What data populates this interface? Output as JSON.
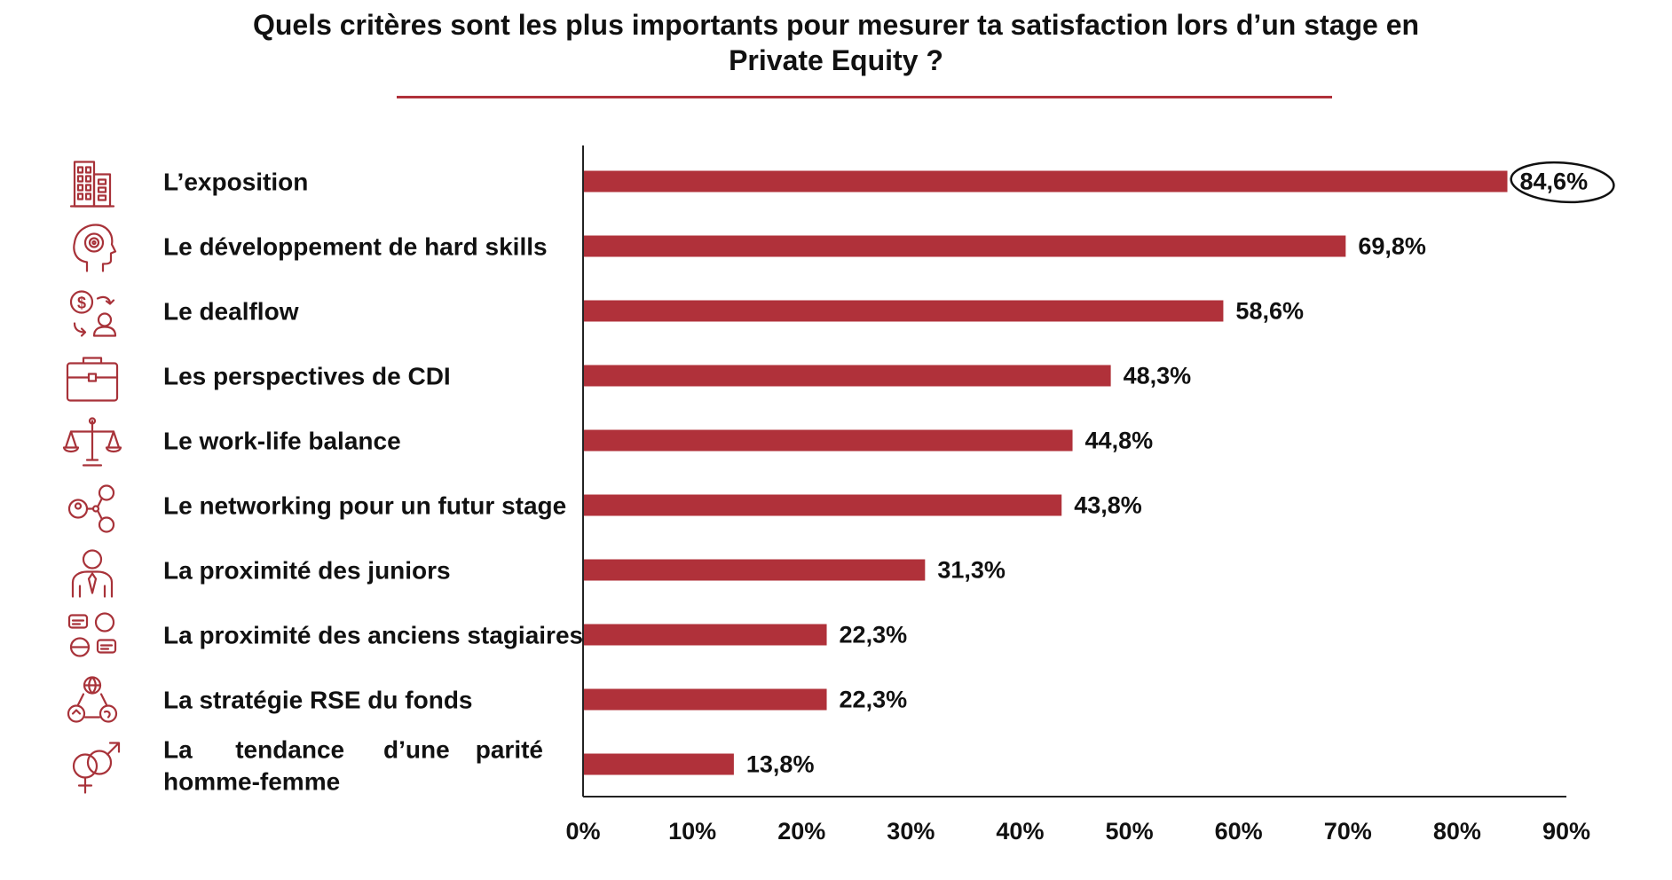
{
  "colors": {
    "bar": "#b0313a",
    "icon": "#a83239",
    "text": "#111111",
    "axis": "#222222"
  },
  "chart_data": {
    "type": "bar",
    "orientation": "horizontal",
    "title": "Quels critères sont les plus importants pour mesurer ta satisfaction lors d’un stage en Private Equity ?",
    "title_lines": [
      "Quels critères sont les plus importants pour mesurer ta satisfaction lors d’un stage en",
      "Private Equity ?"
    ],
    "xlim": [
      0,
      90
    ],
    "xticks": [
      "0%",
      "10%",
      "20%",
      "30%",
      "40%",
      "50%",
      "60%",
      "70%",
      "80%",
      "90%"
    ],
    "grid": false,
    "highlighted_value_index": 0,
    "categories": [
      {
        "lines": [
          "L’exposition"
        ],
        "icon": "building-icon"
      },
      {
        "lines": [
          "Le développement de hard skills"
        ],
        "icon": "head-target-icon"
      },
      {
        "lines": [
          "Le dealflow"
        ],
        "icon": "money-exchange-icon"
      },
      {
        "lines": [
          "Les perspectives de CDI"
        ],
        "icon": "briefcase-icon"
      },
      {
        "lines": [
          "Le work-life balance"
        ],
        "icon": "scales-icon"
      },
      {
        "lines": [
          "Le networking pour un futur stage"
        ],
        "icon": "network-icon"
      },
      {
        "lines": [
          "La proximité des juniors"
        ],
        "icon": "businessman-icon"
      },
      {
        "lines": [
          "La proximité des anciens stagiaires"
        ],
        "icon": "conversation-icon"
      },
      {
        "lines": [
          "La stratégie RSE du fonds"
        ],
        "icon": "sustainability-icon"
      },
      {
        "lines": [
          "La tendance d’une parité",
          "homme-femme"
        ],
        "icon": "gender-icon",
        "justified": true
      }
    ],
    "values": [
      84.6,
      69.8,
      58.6,
      48.3,
      44.8,
      43.8,
      31.3,
      22.3,
      22.3,
      13.8
    ],
    "value_labels": [
      "84,6%",
      "69,8%",
      "58,6%",
      "48,3%",
      "44,8%",
      "43,8%",
      "31,3%",
      "22,3%",
      "22,3%",
      "13,8%"
    ]
  }
}
